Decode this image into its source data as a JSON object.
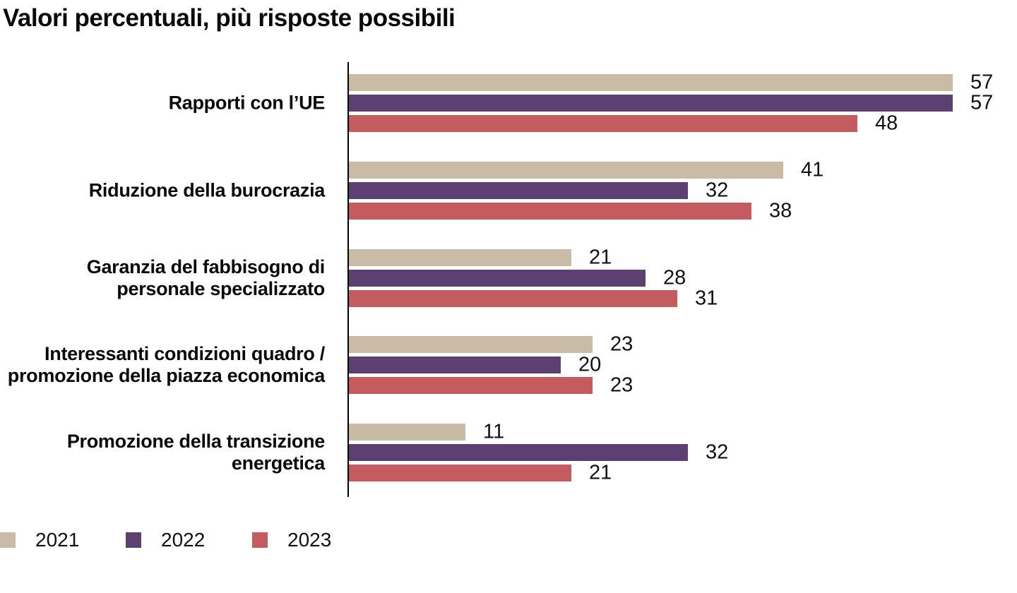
{
  "title": "Valori percentuali, più risposte possibili",
  "chart_data": {
    "type": "bar",
    "orientation": "horizontal",
    "title": "Valori percentuali, più risposte possibili",
    "categories": [
      "Rapporti con l’UE",
      "Riduzione della burocrazia",
      "Garanzia del fabbisogno di personale specializzato",
      "Interessanti condizioni quadro / promozione della piazza economica",
      "Promozione della transizione energetica"
    ],
    "category_label_lines": [
      [
        "Rapporti con l’UE"
      ],
      [
        "Riduzione della burocrazia"
      ],
      [
        "Garanzia del fabbisogno di",
        "personale specializzato"
      ],
      [
        "Interessanti condizioni quadro /",
        "promozione della piazza economica"
      ],
      [
        "Promozione della transizione",
        "energetica"
      ]
    ],
    "series": [
      {
        "name": "2021",
        "color": "#c9bba6",
        "values": [
          57,
          41,
          21,
          23,
          11
        ]
      },
      {
        "name": "2022",
        "color": "#5d4072",
        "values": [
          57,
          32,
          28,
          20,
          32
        ]
      },
      {
        "name": "2023",
        "color": "#c45c5f",
        "values": [
          48,
          38,
          31,
          23,
          21
        ]
      }
    ],
    "xlim": [
      0,
      60
    ],
    "value_labels": true,
    "grid": false,
    "axis_color": "#000000",
    "text_color": "#111111",
    "background": "#ffffff",
    "legend_position": "bottom-left"
  },
  "legend": {
    "items": [
      {
        "label": "2021",
        "color": "#c9bba6"
      },
      {
        "label": "2022",
        "color": "#5d4072"
      },
      {
        "label": "2023",
        "color": "#c45c5f"
      }
    ]
  }
}
